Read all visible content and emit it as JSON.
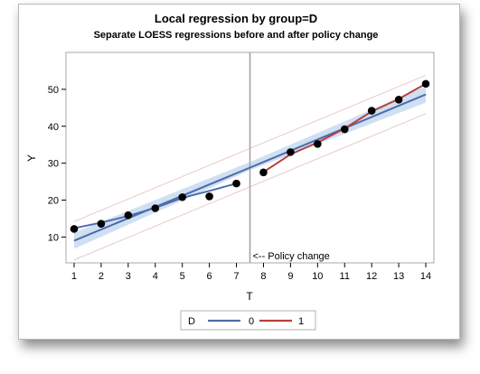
{
  "chart_data": {
    "type": "line",
    "title": "Local regression by group=D",
    "subtitle": "Separate LOESS regressions before and after policy change",
    "xlabel": "T",
    "ylabel": "Y",
    "xlim": [
      0.7,
      14.3
    ],
    "ylim": [
      3,
      60
    ],
    "xticks": [
      1,
      2,
      3,
      4,
      5,
      6,
      7,
      8,
      9,
      10,
      11,
      12,
      13,
      14
    ],
    "yticks": [
      10,
      20,
      30,
      40,
      50
    ],
    "grid": false,
    "points": {
      "x": [
        1,
        2,
        3,
        4,
        5,
        6,
        7,
        8,
        9,
        10,
        11,
        12,
        13,
        14
      ],
      "y": [
        12.2,
        13.6,
        15.9,
        17.8,
        20.8,
        21.0,
        24.5,
        27.5,
        33.0,
        35.2,
        39.2,
        44.2,
        47.2,
        51.5
      ]
    },
    "series": [
      {
        "name": "0",
        "x": [
          1,
          2,
          3,
          4,
          5,
          6,
          7
        ],
        "y": [
          12.4,
          13.9,
          15.7,
          17.9,
          20.6,
          22.5,
          24.5
        ],
        "color": "#4f6bab"
      },
      {
        "name": "1",
        "x": [
          8,
          9,
          10,
          11,
          12,
          13,
          14
        ],
        "y": [
          27.6,
          32.4,
          35.6,
          39.4,
          44.0,
          47.4,
          51.5
        ],
        "color": "#b8403a"
      }
    ],
    "overall_fit": {
      "x": [
        1,
        14
      ],
      "y": [
        9.0,
        48.6
      ],
      "color": "#4f6bab"
    },
    "confidence_band": {
      "x": [
        1,
        7.5,
        14
      ],
      "lower": [
        6.8,
        28.1,
        46.4
      ],
      "upper": [
        11.2,
        30.3,
        50.8
      ],
      "color": "#cfe0f3"
    },
    "prediction_limits": {
      "x": [
        1,
        14
      ],
      "lower": [
        3.8,
        43.4
      ],
      "upper": [
        14.2,
        53.8
      ],
      "color": "#e8caca"
    },
    "reference_line": {
      "x": 7.5,
      "label": "<-- Policy change",
      "color": "#a0a0a0"
    },
    "legend": {
      "title": "D",
      "placement": "bottom-center",
      "entries": [
        "0",
        "1"
      ]
    }
  }
}
